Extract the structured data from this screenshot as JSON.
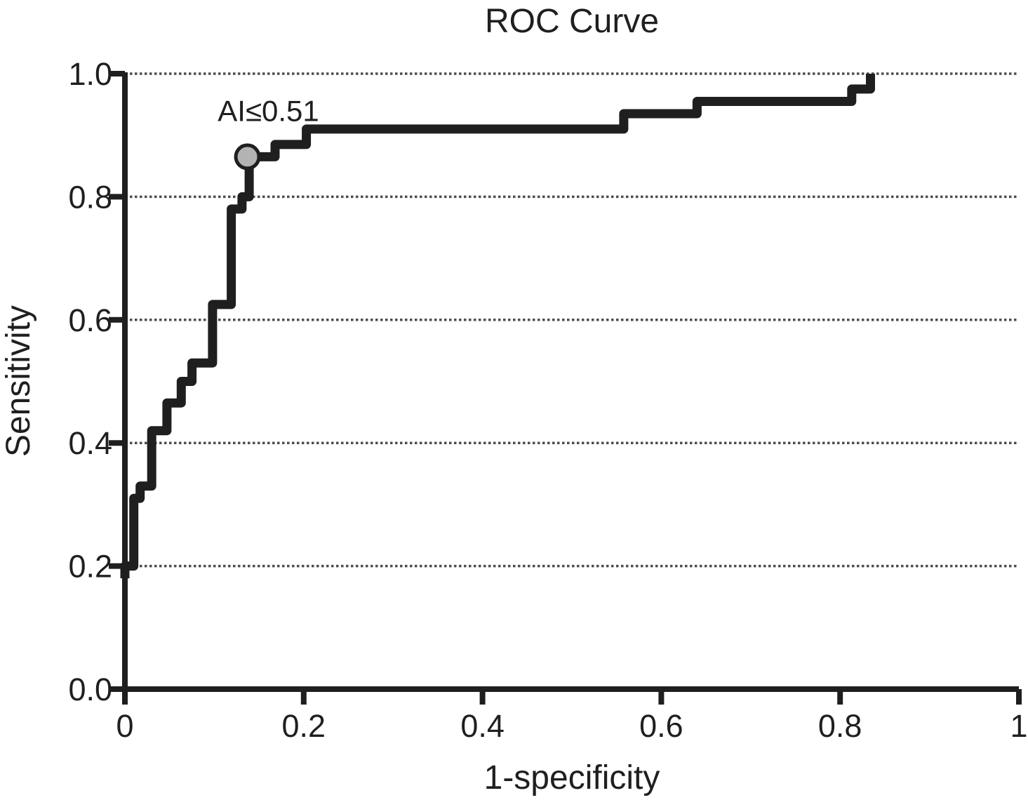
{
  "colors": {
    "curve": "#1f1f1f",
    "axis": "#1f1f1f",
    "gridline": "#4d4d4d",
    "marker_fill": "#b3b3b3",
    "marker_stroke": "#1f1f1f",
    "text": "#1f1f1f",
    "background": "#ffffff"
  },
  "chart_data": {
    "type": "line",
    "subtype": "roc-step-curve",
    "title": "ROC Curve",
    "xlabel": "1-specificity",
    "ylabel": "Sensitivity",
    "xlim": [
      0,
      1
    ],
    "ylim": [
      0,
      1
    ],
    "x_tick_values": [
      0,
      0.2,
      0.4,
      0.6,
      0.8,
      1
    ],
    "x_tick_labels": [
      "0",
      "0.2",
      "0.4",
      "0.6",
      "0.8",
      "1"
    ],
    "y_tick_values": [
      0,
      0.2,
      0.4,
      0.6,
      0.8,
      1
    ],
    "y_tick_labels": [
      "0.0",
      "0.2",
      "0.4",
      "0.6",
      "0.8",
      "1.0"
    ],
    "gridline_y_values": [
      0.2,
      0.4,
      0.6,
      0.8,
      1.0
    ],
    "grid_style": "dotted-horizontal",
    "legend": "none",
    "series": [
      {
        "name": "ROC curve",
        "step_points": [
          [
            0.0,
            0.18
          ],
          [
            0.0,
            0.2
          ],
          [
            0.01,
            0.2
          ],
          [
            0.01,
            0.31
          ],
          [
            0.017,
            0.31
          ],
          [
            0.017,
            0.33
          ],
          [
            0.03,
            0.33
          ],
          [
            0.03,
            0.42
          ],
          [
            0.047,
            0.42
          ],
          [
            0.047,
            0.465
          ],
          [
            0.063,
            0.465
          ],
          [
            0.063,
            0.5
          ],
          [
            0.075,
            0.5
          ],
          [
            0.075,
            0.53
          ],
          [
            0.098,
            0.53
          ],
          [
            0.098,
            0.625
          ],
          [
            0.119,
            0.625
          ],
          [
            0.119,
            0.78
          ],
          [
            0.131,
            0.78
          ],
          [
            0.131,
            0.8
          ],
          [
            0.139,
            0.8
          ],
          [
            0.139,
            0.865
          ],
          [
            0.168,
            0.865
          ],
          [
            0.168,
            0.885
          ],
          [
            0.203,
            0.885
          ],
          [
            0.203,
            0.91
          ],
          [
            0.558,
            0.91
          ],
          [
            0.558,
            0.935
          ],
          [
            0.64,
            0.935
          ],
          [
            0.64,
            0.955
          ],
          [
            0.813,
            0.955
          ],
          [
            0.813,
            0.975
          ],
          [
            0.834,
            0.975
          ],
          [
            0.834,
            1.0
          ]
        ]
      }
    ],
    "cutoff_point": {
      "x": 0.137,
      "y": 0.865,
      "label": "AI≤0.51"
    }
  }
}
